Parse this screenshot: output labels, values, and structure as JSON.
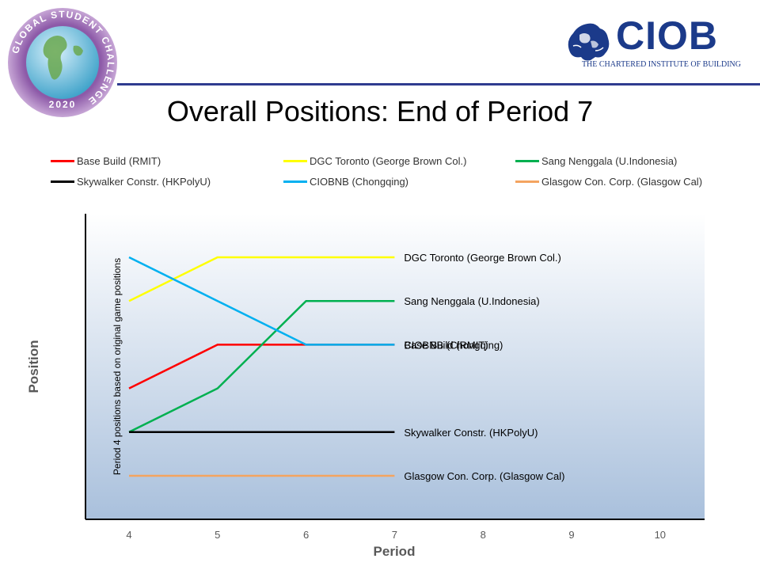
{
  "logo_left": {
    "ring_text": "GLOBAL STUDENT CHALLENGE",
    "year": "2020"
  },
  "logo_right": {
    "name": "CIOB",
    "subtitle": "THE CHARTERED INSTITUTE OF BUILDING"
  },
  "title": "Overall Positions: End of Period 7",
  "colors": {
    "base_build": "#ff0000",
    "dgc_toronto": "#ffff00",
    "sang_nenggala": "#00b050",
    "skywalker": "#000000",
    "ciobnb": "#00b0f0",
    "glasgow": "#f4a460",
    "header_rule": "#2e3b8f",
    "brand_blue": "#1b3a8a"
  },
  "chart_data": {
    "type": "line",
    "title": "Overall Positions: End of Period 7",
    "xlabel": "Period",
    "ylabel": "Position",
    "x_ticks": [
      "4",
      "5",
      "6",
      "7",
      "8",
      "9",
      "10"
    ],
    "xlim": [
      4,
      10
    ],
    "ylim": [
      0,
      6
    ],
    "annotation": "Period 4 positions based on original game positions",
    "legend_position": "top",
    "series": [
      {
        "name": "Base Build (RMIT)",
        "end_label": "Base Build (RMIT)",
        "color_key": "base_build",
        "x": [
          4,
          5,
          6,
          7
        ],
        "y": [
          4,
          3,
          3,
          3
        ]
      },
      {
        "name": "DGC Toronto (George Brown Col.)",
        "end_label": "DGC Toronto  (George Brown Col.)",
        "color_key": "dgc_toronto",
        "x": [
          4,
          5,
          6,
          7
        ],
        "y": [
          2,
          1,
          1,
          1
        ]
      },
      {
        "name": "Sang Nenggala (U.Indonesia)",
        "end_label": "Sang Nenggala (U.Indonesia)",
        "color_key": "sang_nenggala",
        "x": [
          4,
          5,
          6,
          7
        ],
        "y": [
          5,
          4,
          2,
          2
        ]
      },
      {
        "name": "Skywalker Constr. (HKPolyU)",
        "end_label": "Skywalker Constr. (HKPolyU)",
        "color_key": "skywalker",
        "x": [
          4,
          5,
          6,
          7
        ],
        "y": [
          5,
          5,
          5,
          5
        ]
      },
      {
        "name": "CIOBNB (Chongqing)",
        "end_label": "CIOBNB (Chongqing)",
        "color_key": "ciobnb",
        "x": [
          4,
          5,
          6,
          7
        ],
        "y": [
          1,
          2,
          3,
          3
        ]
      },
      {
        "name": "Glasgow Con. Corp. (Glasgow Cal)",
        "end_label": "Glasgow Con. Corp. (Glasgow Cal)",
        "color_key": "glasgow",
        "x": [
          4,
          5,
          6,
          7
        ],
        "y": [
          6,
          6,
          6,
          6
        ]
      }
    ]
  }
}
